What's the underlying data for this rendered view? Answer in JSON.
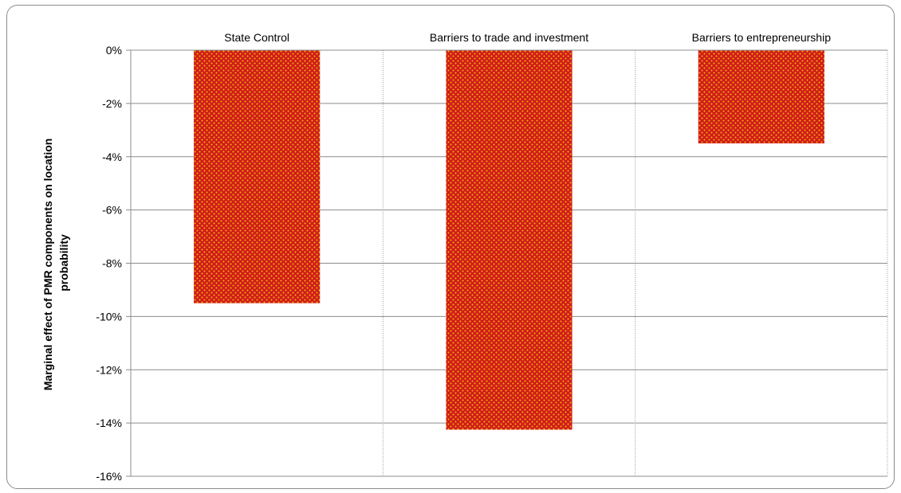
{
  "chart_data": {
    "type": "bar",
    "categories": [
      "State Control",
      "Barriers to trade and investment",
      "Barriers to entrepreneurship"
    ],
    "values": [
      -9.5,
      -14.25,
      -3.5
    ],
    "unit": "%",
    "ylabel": [
      "Marginal effect of PMR components on  location",
      "probability"
    ],
    "ylim": [
      -16,
      0
    ],
    "yticks": [
      0,
      -2,
      -4,
      -6,
      -8,
      -10,
      -12,
      -14,
      -16
    ],
    "ytick_labels": [
      "0%",
      "-2%",
      "-4%",
      "-6%",
      "-8%",
      "-10%",
      "-12%",
      "-14%",
      "-16%"
    ],
    "grid": true,
    "category_labels_position": "top",
    "colors": {
      "bar_fill": "#d01c1c",
      "bar_dots": "#f2b800",
      "grid": "#8c8c8c"
    }
  }
}
